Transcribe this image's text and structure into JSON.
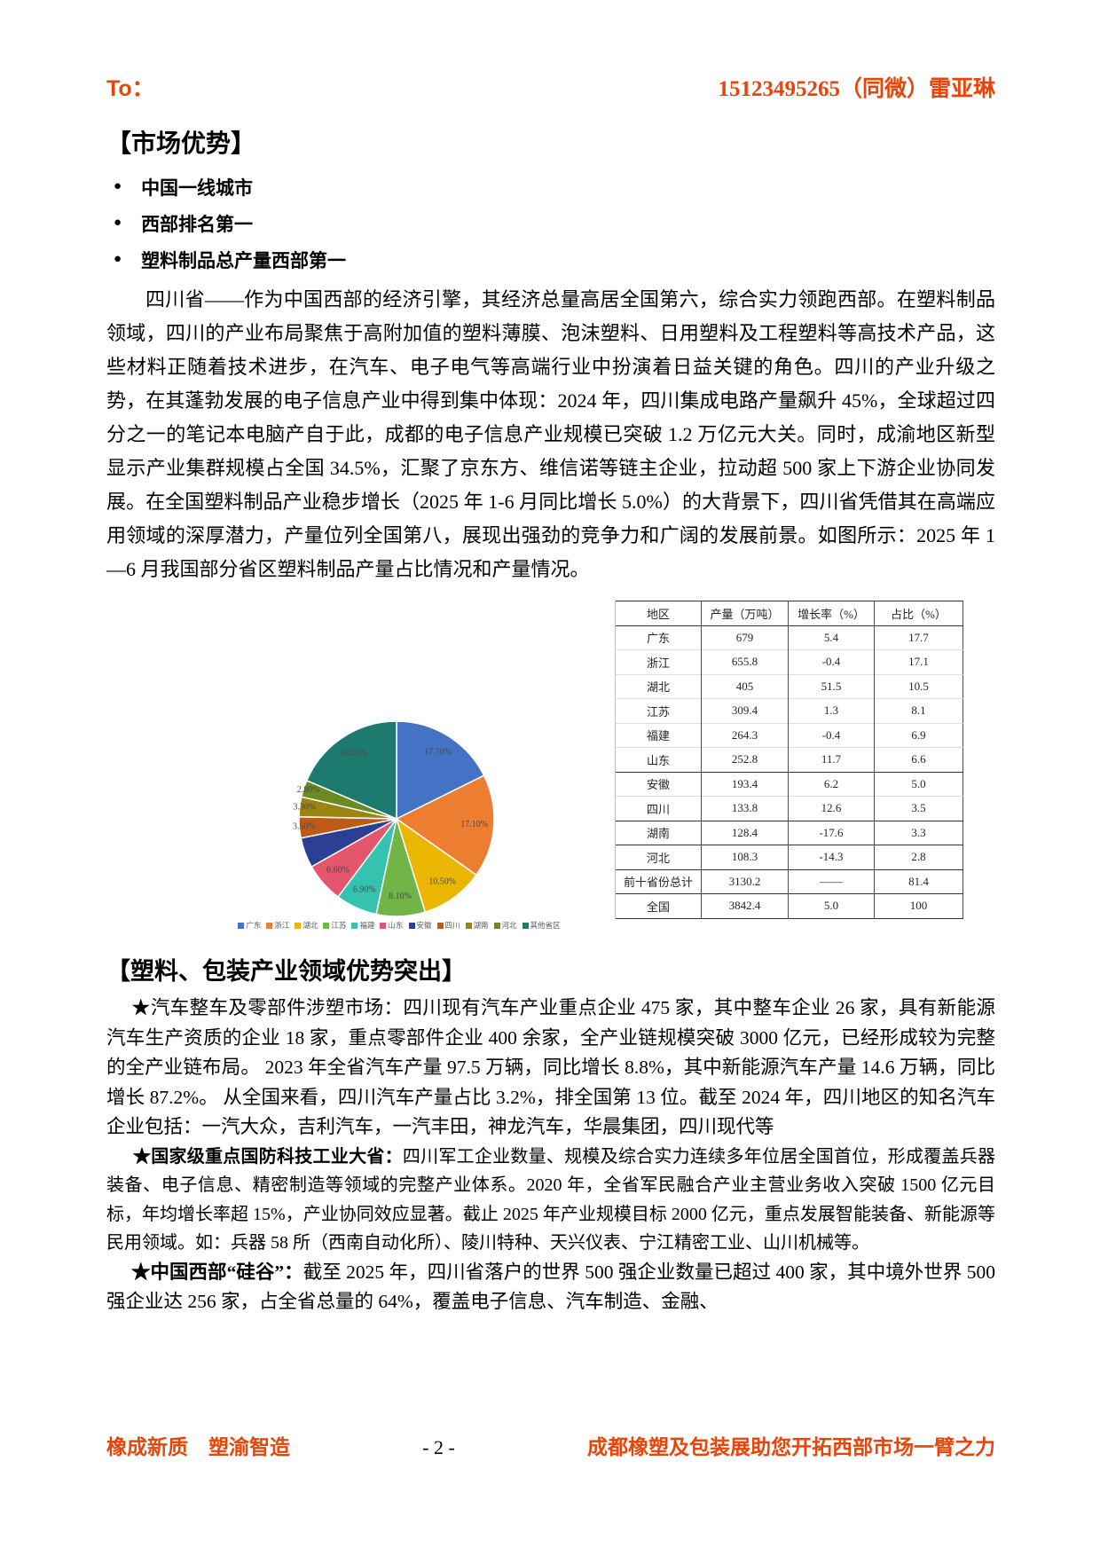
{
  "header": {
    "to": "To：",
    "contact": "15123495265（同微）雷亚琳"
  },
  "market": {
    "title": "【市场优势】",
    "bullets": [
      "中国一线城市",
      "西部排名第一",
      "塑料制品总产量西部第一"
    ],
    "bullet_glyph": "●",
    "paragraph": "四川省——作为中国西部的经济引擎，其经济总量高居全国第六，综合实力领跑西部。在塑料制品领域，四川的产业布局聚焦于高附加值的塑料薄膜、泡沫塑料、日用塑料及工程塑料等高技术产品，这些材料正随着技术进步，在汽车、电子电气等高端行业中扮演着日益关键的角色。四川的产业升级之势，在其蓬勃发展的电子信息产业中得到集中体现：2024 年，四川集成电路产量飙升 45%，全球超过四分之一的笔记本电脑产自于此，成都的电子信息产业规模已突破 1.2 万亿元大关。同时，成渝地区新型显示产业集群规模占全国 34.5%，汇聚了京东方、维信诺等链主企业，拉动超 500 家上下游企业协同发展。在全国塑料制品产业稳步增长（2025 年 1-6 月同比增长 5.0%）的大背景下，四川省凭借其在高端应用领域的深厚潜力，产量位列全国第八，展现出强劲的竞争力和广阔的发展前景。如图所示：2025 年 1—6 月我国部分省区塑料制品产量占比情况和产量情况。"
  },
  "figure": {
    "table": {
      "headers": [
        "地区",
        "产量（万吨）",
        "增长率（%）",
        "占比（%）"
      ],
      "rows": [
        [
          "广东",
          "679",
          "5.4",
          "17.7"
        ],
        [
          "浙江",
          "655.8",
          "-0.4",
          "17.1"
        ],
        [
          "湖北",
          "405",
          "51.5",
          "10.5"
        ],
        [
          "江苏",
          "309.4",
          "1.3",
          "8.1"
        ],
        [
          "福建",
          "264.3",
          "-0.4",
          "6.9"
        ],
        [
          "山东",
          "252.8",
          "11.7",
          "6.6"
        ],
        [
          "安徽",
          "193.4",
          "6.2",
          "5.0"
        ],
        [
          "四川",
          "133.8",
          "12.6",
          "3.5"
        ],
        [
          "湖南",
          "128.4",
          "-17.6",
          "3.3"
        ],
        [
          "河北",
          "108.3",
          "-14.3",
          "2.8"
        ],
        [
          "前十省份总计",
          "3130.2",
          "——",
          "81.4"
        ],
        [
          "全国",
          "3842.4",
          "5.0",
          "100"
        ]
      ]
    }
  },
  "advantages": {
    "title": "【塑料、包装产业领域优势突出】",
    "items": [
      {
        "lead": "★汽车整车及零部件涉塑市场：",
        "text": "四川现有汽车产业重点企业 475 家，其中整车企业 26 家，具有新能源汽车生产资质的企业 18 家，重点零部件企业 400 余家，全产业链规模突破 3000 亿元，已经形成较为完整的全产业链布局。 2023 年全省汽车产量 97.5 万辆，同比增长 8.8%，其中新能源汽车产量 14.6 万辆，同比增长 87.2%。 从全国来看，四川汽车产量占比 3.2%，排全国第 13 位。截至 2024 年，四川地区的知名汽车企业包括：一汽大众，吉利汽车，一汽丰田，神龙汽车，华晨集团，四川现代等"
      },
      {
        "lead": "★国家级重点国防科技工业大省：",
        "text": "四川军工企业数量、规模及综合实力连续多年位居全国首位，形成覆盖兵器装备、电子信息、精密制造等领域的完整产业体系。2020 年，全省军民融合产业主营业务收入突破 1500 亿元目标，年均增长率超 15%，产业协同效应显著。截止 2025 年产业规模目标 2000 亿元，重点发展智能装备、新能源等民用领域。如：兵器 58 所（西南自动化所）、陵川特种、天兴仪表、宁江精密工业、山川机械等。"
      },
      {
        "lead": "★中国西部“硅谷”：",
        "text": "截至 2025 年，四川省落户的世界 500 强企业数量已超过 400 家，其中境外世界 500 强企业达 256 家，占全省总量的 64%，覆盖电子信息、汽车制造、金融、"
      }
    ]
  },
  "footer": {
    "left": "橡成新质　塑渝智造",
    "page_number": "- 2 -",
    "right": "成都橡塑及包装展助您开拓西部市场一臂之力"
  },
  "colors": {
    "accent_orange": "#e8450b"
  },
  "chart_data": {
    "type": "pie",
    "title": "2025年1—6月我国部分省区塑料制品产量占比",
    "labels": [
      "广东",
      "浙江",
      "湖北",
      "江苏",
      "福建",
      "山东",
      "安徽",
      "四川",
      "湖南",
      "河北",
      "其他省区"
    ],
    "values": [
      17.7,
      17.1,
      10.5,
      8.1,
      6.9,
      6.6,
      5.0,
      3.5,
      3.3,
      2.8,
      18.6
    ],
    "slice_labels": [
      "17.70%",
      "17.10%",
      "10.50%",
      "8.10%",
      "6.90%",
      "6.60%",
      "",
      "3.50%",
      "3.30%",
      "2.80%",
      "18.60%"
    ],
    "colors": [
      "#4472c4",
      "#ed7d31",
      "#eab600",
      "#71b548",
      "#35c2ae",
      "#e4556e",
      "#2b3f95",
      "#bf5b17",
      "#9c8412",
      "#6a8b24",
      "#1d7a6e"
    ],
    "legend_position": "bottom",
    "start_angle_deg": -90,
    "direction": "clockwise"
  }
}
